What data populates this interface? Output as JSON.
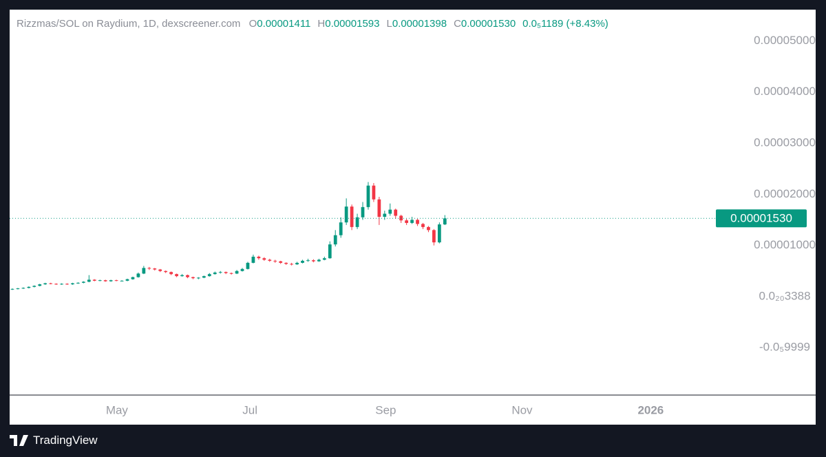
{
  "chart_data": {
    "type": "candlestick",
    "title": "Rizzmas/SOL on Raydium, 1D, dexscreener.com",
    "ohlc": [
      {
        "label": "O",
        "value": "0.00001411"
      },
      {
        "label": "H",
        "value": "0.00001593"
      },
      {
        "label": "L",
        "value": "0.00001398"
      },
      {
        "label": "C",
        "value": "0.00001530"
      }
    ],
    "change": "0.0₅1189 (+8.43%)",
    "last_price": 1.53e-05,
    "last_price_label": "0.00001530",
    "up_color": "#089981",
    "down_color": "#f23645",
    "series": [
      {
        "open": [
          1.4e-06,
          1.5e-06,
          1.6e-06,
          1.7e-06,
          1.9e-06,
          2.1e-06,
          2.4e-06,
          2.6e-06,
          2.5e-06,
          2.4e-06,
          2.5e-06,
          2.4e-06,
          2.6e-06,
          2.7e-06,
          2.9e-06,
          3.3e-06,
          3.1e-06,
          3.2e-06,
          3e-06,
          3.2e-06,
          3.1e-06,
          3.1e-06,
          3.4e-06,
          3.8e-06,
          4.5e-06,
          5.6e-06,
          5.5e-06,
          5.3e-06,
          5e-06,
          4.8e-06,
          4.4e-06,
          4e-06,
          4.2e-06,
          3.8e-06,
          3.6e-06,
          3.7e-06,
          4e-06,
          4.4e-06,
          4.7e-06,
          4.8e-06,
          4.6e-06,
          4.5e-06,
          5e-06,
          5.4e-06,
          6.6e-06,
          7.8e-06,
          7.5e-06,
          7.2e-06,
          7e-06,
          6.9e-06,
          6.6e-06,
          6.4e-06,
          6.3e-06,
          6.6e-06,
          7e-06,
          7.1e-06,
          6.9e-06,
          7.2e-06,
          7.5e-06,
          1.02e-05,
          1.2e-05,
          1.45e-05,
          1.76e-05,
          1.36e-05,
          1.55e-05,
          1.75e-05,
          2.17e-05,
          1.9e-05,
          1.56e-05,
          1.62e-05,
          1.7e-05,
          1.58e-05,
          1.49e-05,
          1.44e-05,
          1.5e-05,
          1.42e-05,
          1.36e-05,
          1.3e-05,
          1.06e-05,
          1.411e-05
        ],
        "high": [
          1.6e-06,
          1.7e-06,
          1.8e-06,
          2e-06,
          2.2e-06,
          2.5e-06,
          2.7e-06,
          2.7e-06,
          2.6e-06,
          2.6e-06,
          2.6e-06,
          2.7e-06,
          2.8e-06,
          3e-06,
          4.2e-06,
          3.4e-06,
          3.3e-06,
          3.3e-06,
          3.3e-06,
          3.3e-06,
          3.2e-06,
          3.5e-06,
          3.9e-06,
          4.7e-06,
          6e-06,
          5.8e-06,
          5.6e-06,
          5.4e-06,
          5.1e-06,
          4.9e-06,
          4.5e-06,
          4.4e-06,
          4.3e-06,
          3.9e-06,
          3.8e-06,
          4.1e-06,
          4.6e-06,
          4.9e-06,
          5e-06,
          4.9e-06,
          4.7e-06,
          5.2e-06,
          5.6e-06,
          6.8e-06,
          8.2e-06,
          8e-06,
          7.7e-06,
          7.4e-06,
          7.2e-06,
          7e-06,
          6.7e-06,
          6.6e-06,
          6.8e-06,
          7.2e-06,
          7.4e-06,
          7.3e-06,
          7.4e-06,
          7.8e-06,
          1.08e-05,
          1.3e-05,
          1.55e-05,
          1.92e-05,
          1.8e-05,
          1.62e-05,
          1.85e-05,
          2.24e-05,
          2.22e-05,
          1.95e-05,
          1.68e-05,
          1.82e-05,
          1.72e-05,
          1.6e-05,
          1.52e-05,
          1.56e-05,
          1.52e-05,
          1.44e-05,
          1.38e-05,
          1.32e-05,
          1.45e-05,
          1.593e-05
        ],
        "low": [
          1.3e-06,
          1.4e-06,
          1.5e-06,
          1.6e-06,
          1.8e-06,
          2e-06,
          2.3e-06,
          2.4e-06,
          2.3e-06,
          2.3e-06,
          2.3e-06,
          2.3e-06,
          2.5e-06,
          2.6e-06,
          2.8e-06,
          3e-06,
          3e-06,
          2.9e-06,
          2.9e-06,
          3e-06,
          3e-06,
          3e-06,
          3.3e-06,
          3.7e-06,
          4.4e-06,
          5.2e-06,
          5.1e-06,
          4.8e-06,
          4.6e-06,
          4.2e-06,
          3.8e-06,
          3.9e-06,
          3.6e-06,
          3.4e-06,
          3.4e-06,
          3.6e-06,
          3.9e-06,
          4.3e-06,
          4.5e-06,
          4.4e-06,
          4.3e-06,
          4.4e-06,
          4.9e-06,
          5.3e-06,
          6.5e-06,
          7.2e-06,
          7e-06,
          6.8e-06,
          6.6e-06,
          6.4e-06,
          6.2e-06,
          6.1e-06,
          6.2e-06,
          6.5e-06,
          6.8e-06,
          6.7e-06,
          6.8e-06,
          7.1e-06,
          7.4e-06,
          9.8e-06,
          1.15e-05,
          1.4e-05,
          1.3e-05,
          1.32e-05,
          1.5e-05,
          1.7e-05,
          1.85e-05,
          1.4e-05,
          1.5e-05,
          1.58e-05,
          1.52e-05,
          1.44e-05,
          1.4e-05,
          1.42e-05,
          1.38e-05,
          1.32e-05,
          1.26e-05,
          1e-05,
          1.04e-05,
          1.398e-05
        ],
        "close": [
          1.5e-06,
          1.6e-06,
          1.7e-06,
          1.9e-06,
          2.1e-06,
          2.4e-06,
          2.6e-06,
          2.5e-06,
          2.4e-06,
          2.5e-06,
          2.4e-06,
          2.6e-06,
          2.7e-06,
          2.9e-06,
          3.3e-06,
          3.1e-06,
          3.2e-06,
          3e-06,
          3.2e-06,
          3.1e-06,
          3.1e-06,
          3.4e-06,
          3.8e-06,
          4.5e-06,
          5.6e-06,
          5.5e-06,
          5.3e-06,
          5e-06,
          4.8e-06,
          4.4e-06,
          4e-06,
          4.2e-06,
          3.8e-06,
          3.6e-06,
          3.7e-06,
          4e-06,
          4.4e-06,
          4.7e-06,
          4.8e-06,
          4.6e-06,
          4.5e-06,
          5e-06,
          5.4e-06,
          6.6e-06,
          7.8e-06,
          7.5e-06,
          7.2e-06,
          7e-06,
          6.9e-06,
          6.6e-06,
          6.4e-06,
          6.3e-06,
          6.6e-06,
          7e-06,
          7.1e-06,
          6.9e-06,
          7.2e-06,
          7.5e-06,
          1.02e-05,
          1.2e-05,
          1.45e-05,
          1.76e-05,
          1.36e-05,
          1.55e-05,
          1.75e-05,
          2.17e-05,
          1.9e-05,
          1.56e-05,
          1.62e-05,
          1.7e-05,
          1.58e-05,
          1.49e-05,
          1.44e-05,
          1.5e-05,
          1.42e-05,
          1.36e-05,
          1.3e-05,
          1.06e-05,
          1.411e-05,
          1.53e-05
        ]
      }
    ],
    "xlim": [
      0,
      129
    ],
    "xticks": [
      {
        "value": 19.6,
        "label": "May"
      },
      {
        "value": 43.9,
        "label": "Jul"
      },
      {
        "value": 68.7,
        "label": "Sep"
      },
      {
        "value": 93.6,
        "label": "Nov"
      },
      {
        "value": 117.1,
        "label": "2026"
      }
    ],
    "ylim": [
      -1.925e-05,
      5.61e-05
    ],
    "yticks": [
      {
        "value": 5e-05,
        "label": "0.00005000"
      },
      {
        "value": 4e-05,
        "label": "0.00004000"
      },
      {
        "value": 3e-05,
        "label": "0.00003000"
      },
      {
        "value": 2e-05,
        "label": "0.00002000"
      },
      {
        "value": 1e-05,
        "label": "0.00001000"
      },
      {
        "value": 3.388e-21,
        "label": "0.0₂₀3388"
      },
      {
        "value": -9.999e-06,
        "label": "-0.0₅9999"
      }
    ],
    "footer": "TradingView"
  }
}
